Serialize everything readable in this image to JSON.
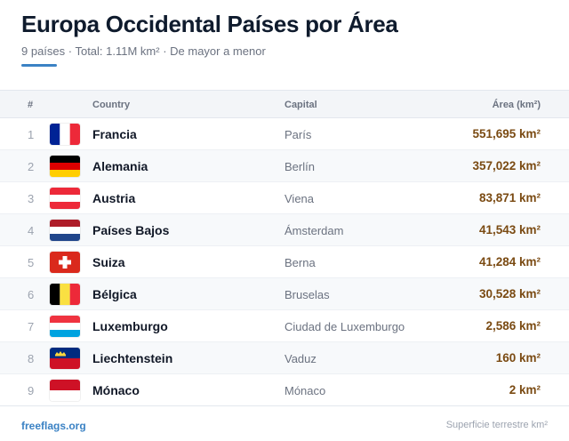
{
  "header": {
    "title": "Europa Occidental Países por Área",
    "subtitle": "9 países · Total: 1.11M km² · De mayor a menor",
    "accent_color": "#3b82c4"
  },
  "table": {
    "columns": [
      "#",
      "Country",
      "Capital",
      "Área (km²)"
    ],
    "rows": [
      {
        "rank": "1",
        "flag": "flag-france-icon",
        "country": "Francia",
        "capital": "París",
        "area": "551,695 km²"
      },
      {
        "rank": "2",
        "flag": "flag-germany-icon",
        "country": "Alemania",
        "capital": "Berlín",
        "area": "357,022 km²"
      },
      {
        "rank": "3",
        "flag": "flag-austria-icon",
        "country": "Austria",
        "capital": "Viena",
        "area": "83,871 km²"
      },
      {
        "rank": "4",
        "flag": "flag-netherlands-icon",
        "country": "Países Bajos",
        "capital": "Ámsterdam",
        "area": "41,543 km²"
      },
      {
        "rank": "5",
        "flag": "flag-switzerland-icon",
        "country": "Suiza",
        "capital": "Berna",
        "area": "41,284 km²"
      },
      {
        "rank": "6",
        "flag": "flag-belgium-icon",
        "country": "Bélgica",
        "capital": "Bruselas",
        "area": "30,528 km²"
      },
      {
        "rank": "7",
        "flag": "flag-luxembourg-icon",
        "country": "Luxemburgo",
        "capital": "Ciudad de Luxemburgo",
        "area": "2,586 km²"
      },
      {
        "rank": "8",
        "flag": "flag-liechtenstein-icon",
        "country": "Liechtenstein",
        "capital": "Vaduz",
        "area": "160 km²"
      },
      {
        "rank": "9",
        "flag": "flag-monaco-icon",
        "country": "Mónaco",
        "capital": "Mónaco",
        "area": "2 km²"
      }
    ]
  },
  "footer": {
    "source": "freeflags.org",
    "note": "Superficie terrestre km²"
  }
}
